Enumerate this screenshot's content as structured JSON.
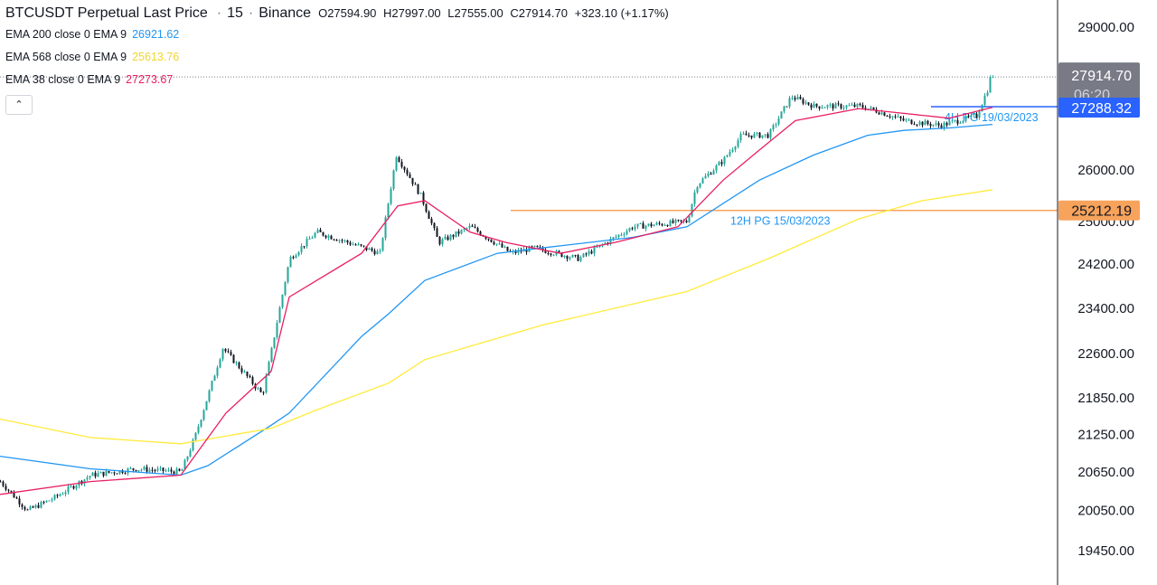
{
  "header": {
    "symbol": "BTCUSDT Perpetual Last Price",
    "interval": "15",
    "exchange": "Binance",
    "open": "O27594.90",
    "high": "H27997.00",
    "low": "L27555.00",
    "close": "C27914.70",
    "change": "+323.10 (+1.17%)"
  },
  "indicators": [
    {
      "label": "EMA 200 close 0 EMA 9",
      "value": "26921.62",
      "color": "#2196f3"
    },
    {
      "label": "EMA 568 close 0 EMA 9",
      "value": "25613.76",
      "color": "#ffeb3b"
    },
    {
      "label": "EMA 38 close 0 EMA 9",
      "value": "27273.67",
      "color": "#e91e63"
    }
  ],
  "collapse_label": "⌃",
  "axis": {
    "ticks": [
      "29000.00",
      "26000.00",
      "25000.00",
      "24200.00",
      "23400.00",
      "22600.00",
      "21850.00",
      "21250.00",
      "20650.00",
      "20050.00",
      "19450.00"
    ]
  },
  "price_tags": {
    "last_price": "27914.70",
    "countdown": "06:20",
    "level_4h": "27288.32",
    "level_12h": "25212.19"
  },
  "line_labels": {
    "level_4h": "4H PG 19/03/2023",
    "level_12h": "12H PG 15/03/2023"
  },
  "colors": {
    "up": "#26a69a",
    "down": "#131722",
    "ema200": "#2196f3",
    "ema568": "#ffeb3b",
    "ema38": "#e91e63",
    "level_4h": "#2962ff",
    "level_12h": "#f7a35c",
    "label_text": "#2196f3"
  },
  "chart_data": {
    "type": "line",
    "title": "BTCUSDT Perpetual Last Price",
    "y_axis_ticks": [
      29000,
      26000,
      25000,
      24200,
      23400,
      22600,
      21850,
      21250,
      20650,
      20050,
      19450
    ],
    "ylim": [
      19300,
      29400
    ],
    "y_scale": "log",
    "horizontal_levels": [
      {
        "name": "4H PG 19/03/2023",
        "value": 27288.32
      },
      {
        "name": "12H PG 15/03/2023",
        "value": 25212.19
      }
    ],
    "last_price": 27914.7,
    "series": [
      {
        "name": "Price",
        "x": [
          0,
          30,
          60,
          100,
          150,
          200,
          215,
          232,
          246,
          290,
          298,
          320,
          350,
          420,
          438,
          465,
          485,
          520,
          565,
          590,
          640,
          700,
          760,
          770,
          800,
          820,
          850,
          875,
          900,
          950,
          970,
          1000,
          1040,
          1080,
          1098
        ],
        "values": [
          20500,
          20050,
          20250,
          20600,
          20700,
          20650,
          21200,
          22000,
          22700,
          21900,
          22500,
          24300,
          24800,
          24400,
          26300,
          25500,
          24600,
          24900,
          24400,
          24500,
          24300,
          24900,
          25000,
          25700,
          26200,
          26700,
          26700,
          27500,
          27300,
          27300,
          27200,
          27000,
          26900,
          27100,
          27914.7
        ]
      },
      {
        "name": "EMA 200 close 0 EMA 9",
        "x": [
          0,
          100,
          200,
          230,
          300,
          320,
          400,
          430,
          470,
          550,
          600,
          700,
          760,
          840,
          900,
          960,
          1000,
          1050,
          1098
        ],
        "values": [
          20900,
          20700,
          20600,
          20750,
          21400,
          21600,
          22900,
          23300,
          23900,
          24400,
          24500,
          24700,
          24900,
          25800,
          26300,
          26700,
          26800,
          26850,
          26921.62
        ]
      },
      {
        "name": "EMA 568 close 0 EMA 9",
        "x": [
          0,
          100,
          200,
          300,
          350,
          430,
          470,
          600,
          760,
          850,
          950,
          1020,
          1098
        ],
        "values": [
          21500,
          21200,
          21100,
          21350,
          21650,
          22100,
          22500,
          23100,
          23700,
          24300,
          25050,
          25400,
          25613.76
        ]
      },
      {
        "name": "EMA 38 close 0 EMA 9",
        "x": [
          0,
          100,
          200,
          250,
          300,
          320,
          400,
          440,
          470,
          520,
          560,
          620,
          680,
          750,
          800,
          840,
          880,
          950,
          1000,
          1050,
          1098
        ],
        "values": [
          20300,
          20500,
          20600,
          21600,
          22300,
          23600,
          24400,
          25300,
          25400,
          24800,
          24600,
          24400,
          24600,
          24900,
          25800,
          26400,
          27000,
          27250,
          27150,
          27050,
          27273.67
        ]
      }
    ]
  }
}
